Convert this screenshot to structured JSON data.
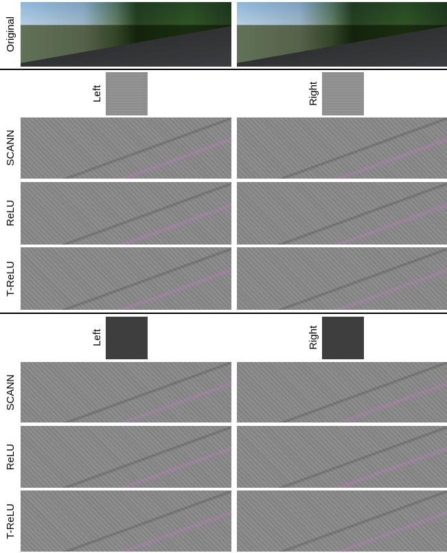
{
  "original": {
    "label": "Original"
  },
  "sections": [
    {
      "kernel_labels": [
        "Left",
        "Right"
      ],
      "rows": [
        "SCANN",
        "ReLU",
        "T-ReLU"
      ]
    },
    {
      "kernel_labels": [
        "Left",
        "Right"
      ],
      "rows": [
        "SCANN",
        "ReLU",
        "T-ReLU"
      ]
    }
  ]
}
